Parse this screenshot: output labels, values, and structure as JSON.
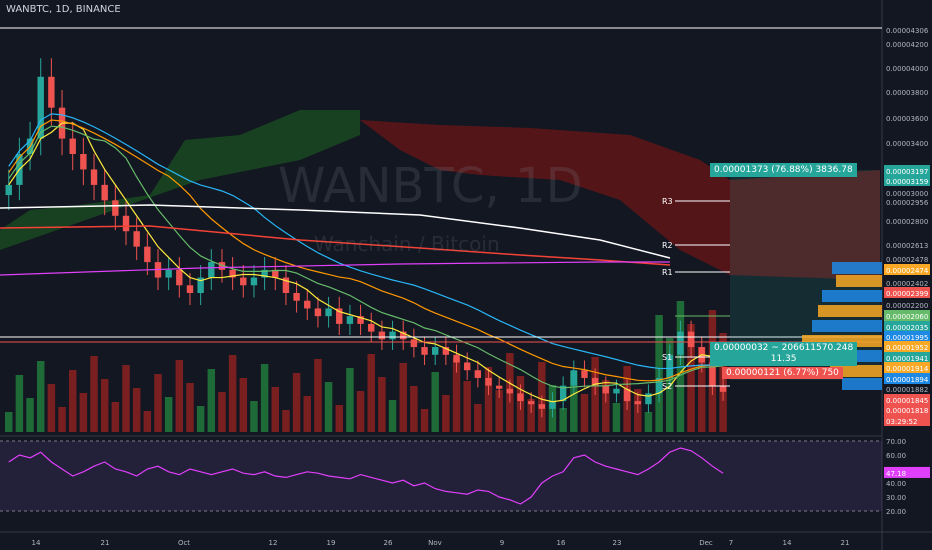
{
  "header": {
    "symbol": "WANBTC, 1D, BINANCE"
  },
  "watermark": {
    "symbol": "WANBTC, 1D",
    "name": "Wanchain / Bitcoin"
  },
  "measure": {
    "top": "0.00001373 (76.88%) 3836.78",
    "mid_line1": "0.00000032 ~ 206611570.248",
    "mid_line2": "11.35",
    "bottom": "0.00000121 (6.77%) 750"
  },
  "pivots": [
    "R3",
    "R2",
    "R1",
    "S1",
    "S2"
  ],
  "colors": {
    "up": "#26a69a",
    "down": "#ef5350",
    "bg": "#131722",
    "rsi": "#e040fb"
  },
  "chart_data": {
    "type": "candlestick",
    "y_ticks": [
      "0.00004306",
      "0.00004200",
      "0.00004000",
      "0.00003800",
      "0.00003600",
      "0.00003400",
      "0.00003197",
      "0.00003159",
      "0.00003000",
      "0.00002956",
      "0.00002800",
      "0.00002613",
      "0.00002478",
      "0.00002474",
      "0.00002402",
      "0.00002399",
      "0.00002200",
      "0.00002060",
      "0.00002035",
      "0.00001995",
      "0.00001952",
      "0.00001941",
      "0.00001914",
      "0.00001894",
      "0.00001882",
      "0.00001845",
      "0.00001818",
      "03:29:52"
    ],
    "x_ticks": [
      "14",
      "21",
      "Oct",
      "12",
      "19",
      "26",
      "Nov",
      "9",
      "16",
      "23",
      "Dec",
      "7",
      "14",
      "21"
    ],
    "rsi_ticks": [
      "70.00",
      "60.00",
      "50.00",
      "40.00",
      "30.00",
      "20.00"
    ],
    "rsi_label": "47.18",
    "closes": [
      3300,
      3500,
      3600,
      4000,
      3800,
      3600,
      3500,
      3400,
      3300,
      3200,
      3100,
      3000,
      2900,
      2800,
      2700,
      2750,
      2650,
      2600,
      2700,
      2800,
      2750,
      2700,
      2650,
      2700,
      2750,
      2700,
      2600,
      2550,
      2500,
      2450,
      2500,
      2400,
      2450,
      2400,
      2350,
      2300,
      2350,
      2300,
      2250,
      2200,
      2250,
      2200,
      2150,
      2100,
      2050,
      2000,
      1980,
      1950,
      1900,
      1880,
      1850,
      1900,
      2000,
      2100,
      2050,
      2000,
      1950,
      1980,
      1900,
      1880,
      1950,
      2050,
      2200,
      2350,
      2250,
      2150,
      2000,
      1960
    ],
    "rsi": [
      55,
      60,
      58,
      62,
      55,
      50,
      45,
      48,
      52,
      55,
      50,
      48,
      45,
      50,
      52,
      48,
      46,
      50,
      48,
      46,
      48,
      50,
      47,
      46,
      48,
      45,
      44,
      46,
      48,
      47,
      45,
      44,
      43,
      46,
      44,
      42,
      40,
      42,
      38,
      40,
      36,
      34,
      33,
      32,
      35,
      34,
      30,
      28,
      25,
      30,
      40,
      45,
      48,
      58,
      60,
      55,
      52,
      50,
      48,
      46,
      50,
      55,
      62,
      65,
      63,
      58,
      52,
      47
    ]
  }
}
